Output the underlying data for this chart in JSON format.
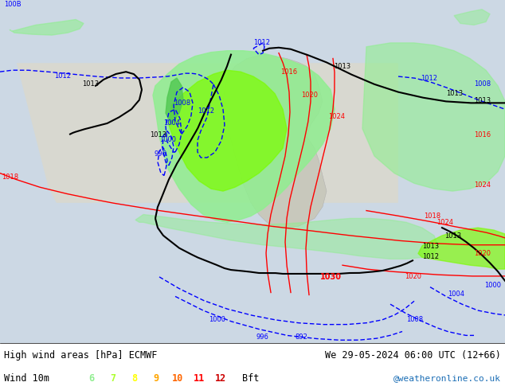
{
  "title_left": "High wind areas [hPa] ECMWF",
  "title_right": "We 29-05-2024 06:00 UTC (12+66)",
  "subtitle_left": "Wind 10m",
  "bft_labels": [
    "6",
    "7",
    "8",
    "9",
    "10",
    "11",
    "12",
    "Bft"
  ],
  "bft_colors": [
    "#90ee90",
    "#adff2f",
    "#ffff00",
    "#ffa500",
    "#ff6600",
    "#ff0000",
    "#cc0000",
    "#000000"
  ],
  "bg_color": "#e8e8e8",
  "map_bg": "#d4dde8",
  "ocean_color": "#cdd8e0",
  "land_color": "#d4d4c8",
  "aus_green": "#90ee90",
  "aus_green2": "#7cfc00",
  "credit": "@weatheronline.co.uk",
  "credit_color": "#1a6db5",
  "bottom_bar_color": "#ffffff",
  "bottom_bar_height": 0.12
}
